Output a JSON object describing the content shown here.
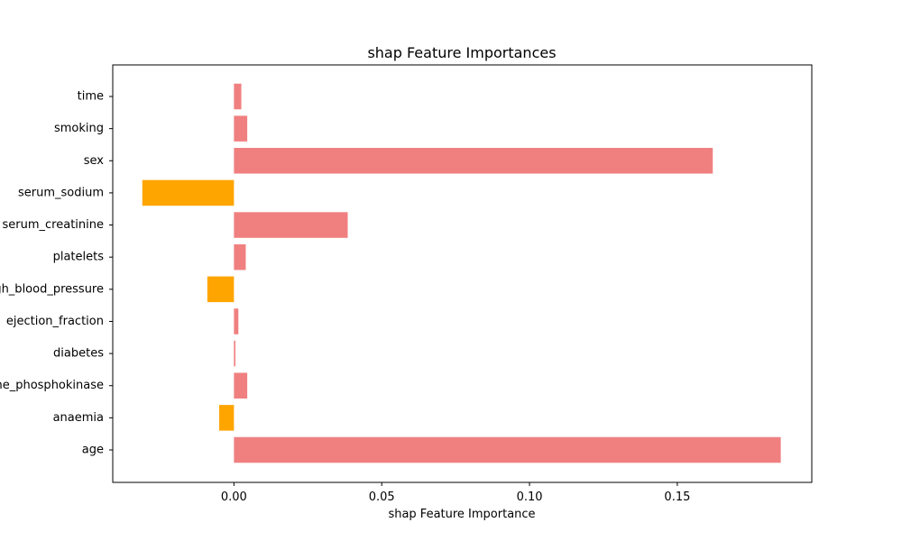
{
  "chart_data": {
    "type": "bar",
    "orientation": "horizontal",
    "title": "shap Feature Importances",
    "xlabel": "shap Feature Importance",
    "ylabel": "",
    "categories": [
      "age",
      "anaemia",
      "creatinine_phosphokinase",
      "diabetes",
      "ejection_fraction",
      "high_blood_pressure",
      "platelets",
      "serum_creatinine",
      "serum_sodium",
      "sex",
      "smoking",
      "time"
    ],
    "values": [
      0.185,
      -0.005,
      0.0045,
      0.0005,
      0.0015,
      -0.009,
      0.004,
      0.0385,
      -0.031,
      0.162,
      0.0045,
      0.0025
    ],
    "xlim": [
      -0.041,
      0.1955
    ],
    "xticks": [
      0.0,
      0.05,
      0.1,
      0.15
    ],
    "xtick_labels": [
      "0.00",
      "0.05",
      "0.10",
      "0.15"
    ],
    "colors": {
      "positive": "#f08080",
      "negative": "#ffa500"
    },
    "grid": false,
    "legend": "none"
  }
}
